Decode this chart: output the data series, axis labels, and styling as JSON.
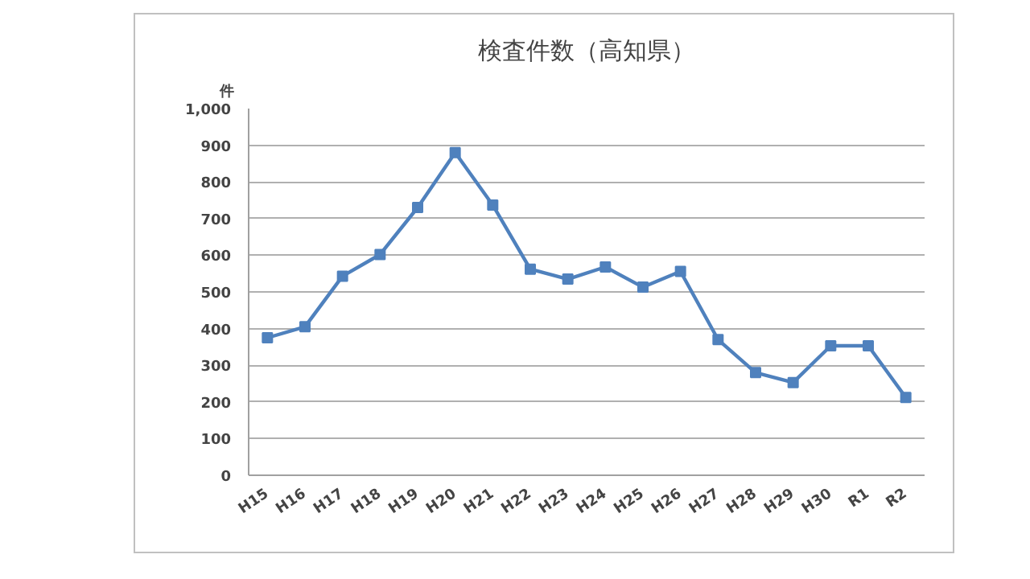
{
  "chart_data": {
    "type": "line",
    "title": "検査件数（高知県）",
    "ylabel": "件",
    "categories": [
      "H15",
      "H16",
      "H17",
      "H18",
      "H19",
      "H20",
      "H21",
      "H22",
      "H23",
      "H24",
      "H25",
      "H26",
      "H27",
      "H28",
      "H29",
      "H30",
      "R1",
      "R2"
    ],
    "series": [
      {
        "color": "#4f81bd",
        "values": [
          375,
          405,
          543,
          602,
          730,
          880,
          737,
          562,
          535,
          568,
          513,
          556,
          370,
          280,
          253,
          353,
          353,
          212
        ]
      }
    ],
    "ylim": [
      0,
      1000
    ],
    "yticks": [
      0,
      100,
      200,
      300,
      400,
      500,
      600,
      700,
      800,
      900,
      {
        "value": 1000,
        "label": "1,000"
      }
    ],
    "grid": "y",
    "marker": "square",
    "line_style": "solid"
  }
}
